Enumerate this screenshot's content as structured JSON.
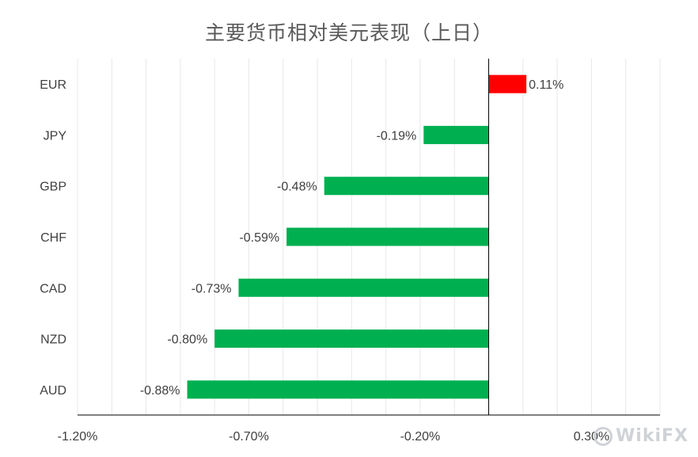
{
  "chart_data": {
    "type": "bar",
    "orientation": "horizontal",
    "title": "主要货币相对美元表现（上日）",
    "categories": [
      "EUR",
      "JPY",
      "GBP",
      "CHF",
      "CAD",
      "NZD",
      "AUD"
    ],
    "values": [
      0.11,
      -0.19,
      -0.48,
      -0.59,
      -0.73,
      -0.8,
      -0.88
    ],
    "value_labels": [
      "0.11%",
      "-0.19%",
      "-0.48%",
      "-0.59%",
      "-0.73%",
      "-0.80%",
      "-0.88%"
    ],
    "xlim": [
      -1.2,
      0.5
    ],
    "xticks": [
      -1.2,
      -0.7,
      -0.2,
      0.3
    ],
    "xtick_labels": [
      "-1.20%",
      "-0.70%",
      "-0.20%",
      "0.30%"
    ],
    "grid": "vertical",
    "colors": {
      "positive": "#ff0000",
      "negative": "#00b050",
      "grid": "#e8e8e8",
      "axis": "#000000",
      "text": "#404040"
    }
  },
  "watermark": "WikiFX"
}
